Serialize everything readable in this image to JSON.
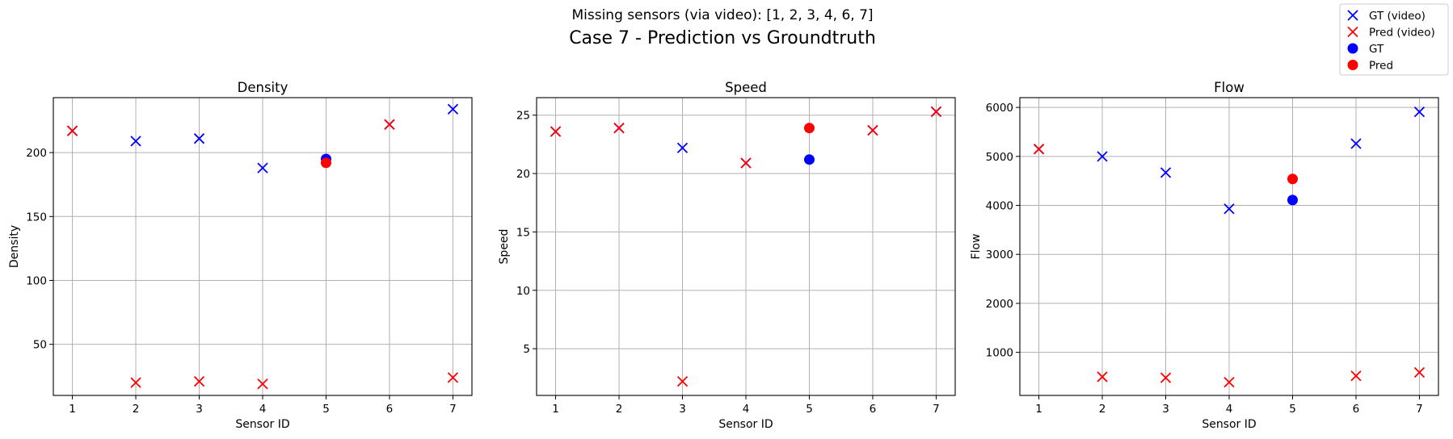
{
  "figure": {
    "suptitle": "Missing sensors (via video): [1, 2, 3, 4, 6, 7]",
    "title": "Case 7 - Prediction vs Groundtruth"
  },
  "legend": {
    "placement": "top-right",
    "entries": [
      {
        "label": "GT (video)",
        "marker": "x",
        "color": "#0000ff"
      },
      {
        "label": "Pred (video)",
        "marker": "x",
        "color": "#ff0000"
      },
      {
        "label": "GT",
        "marker": "o",
        "color": "#0000ff"
      },
      {
        "label": "Pred",
        "marker": "o",
        "color": "#ff0000"
      }
    ]
  },
  "colors": {
    "gt": "#0000ff",
    "pred": "#ff0000",
    "grid": "#b0b0b0"
  },
  "chart_data": [
    {
      "type": "scatter",
      "title": "Density",
      "xlabel": "Sensor ID",
      "ylabel": "Density",
      "xlim": [
        0.7,
        7.3
      ],
      "ylim": [
        10,
        243
      ],
      "xticks": [
        1,
        2,
        3,
        4,
        5,
        6,
        7
      ],
      "yticks": [
        50,
        100,
        150,
        200
      ],
      "grid": true,
      "series": [
        {
          "name": "GT (video)",
          "marker": "x",
          "color": "#0000ff",
          "x": [
            1,
            2,
            3,
            4,
            6,
            7
          ],
          "y": [
            217,
            209,
            211,
            188,
            222,
            234
          ]
        },
        {
          "name": "Pred (video)",
          "marker": "x",
          "color": "#ff0000",
          "x": [
            1,
            2,
            3,
            4,
            6,
            7
          ],
          "y": [
            217,
            20,
            21,
            19,
            222,
            24
          ]
        },
        {
          "name": "GT",
          "marker": "o",
          "color": "#0000ff",
          "x": [
            5
          ],
          "y": [
            195
          ]
        },
        {
          "name": "Pred",
          "marker": "o",
          "color": "#ff0000",
          "x": [
            5
          ],
          "y": [
            192
          ]
        }
      ]
    },
    {
      "type": "scatter",
      "title": "Speed",
      "xlabel": "Sensor ID",
      "ylabel": "Speed",
      "xlim": [
        0.7,
        7.3
      ],
      "ylim": [
        1,
        26.5
      ],
      "xticks": [
        1,
        2,
        3,
        4,
        5,
        6,
        7
      ],
      "yticks": [
        5,
        10,
        15,
        20,
        25
      ],
      "grid": true,
      "series": [
        {
          "name": "GT (video)",
          "marker": "x",
          "color": "#0000ff",
          "x": [
            1,
            2,
            3,
            4,
            6,
            7
          ],
          "y": [
            23.6,
            23.9,
            22.2,
            20.9,
            23.7,
            25.3
          ]
        },
        {
          "name": "Pred (video)",
          "marker": "x",
          "color": "#ff0000",
          "x": [
            1,
            2,
            3,
            4,
            6,
            7
          ],
          "y": [
            23.6,
            23.9,
            2.2,
            20.9,
            23.7,
            25.3
          ]
        },
        {
          "name": "GT",
          "marker": "o",
          "color": "#0000ff",
          "x": [
            5
          ],
          "y": [
            21.2
          ]
        },
        {
          "name": "Pred",
          "marker": "o",
          "color": "#ff0000",
          "x": [
            5
          ],
          "y": [
            23.9
          ]
        }
      ]
    },
    {
      "type": "scatter",
      "title": "Flow",
      "xlabel": "Sensor ID",
      "ylabel": "Flow",
      "xlim": [
        0.7,
        7.3
      ],
      "ylim": [
        120,
        6200
      ],
      "xticks": [
        1,
        2,
        3,
        4,
        5,
        6,
        7
      ],
      "yticks": [
        1000,
        2000,
        3000,
        4000,
        5000,
        6000
      ],
      "grid": true,
      "series": [
        {
          "name": "GT (video)",
          "marker": "x",
          "color": "#0000ff",
          "x": [
            1,
            2,
            3,
            4,
            6,
            7
          ],
          "y": [
            5150,
            5000,
            4670,
            3930,
            5260,
            5910
          ]
        },
        {
          "name": "Pred (video)",
          "marker": "x",
          "color": "#ff0000",
          "x": [
            1,
            2,
            3,
            4,
            6,
            7
          ],
          "y": [
            5150,
            500,
            480,
            390,
            520,
            590
          ]
        },
        {
          "name": "GT",
          "marker": "o",
          "color": "#0000ff",
          "x": [
            5
          ],
          "y": [
            4110
          ]
        },
        {
          "name": "Pred",
          "marker": "o",
          "color": "#ff0000",
          "x": [
            5
          ],
          "y": [
            4540
          ]
        }
      ]
    }
  ]
}
